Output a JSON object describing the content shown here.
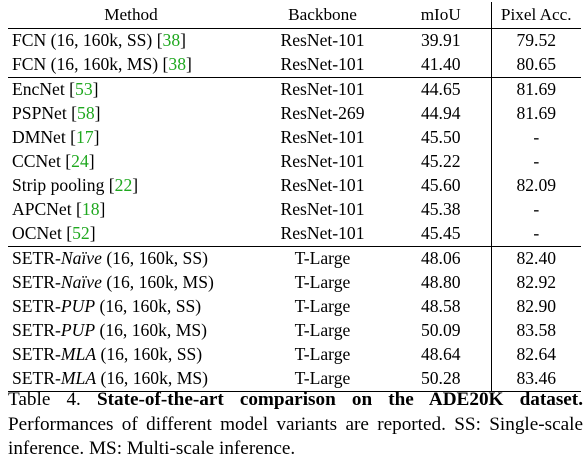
{
  "table": {
    "headers": [
      "Method",
      "Backbone",
      "mIoU",
      "Pixel Acc."
    ],
    "groups": [
      [
        {
          "name": "FCN (16, 160k, SS) ",
          "cite": "38",
          "backbone": "ResNet-101",
          "miou": "39.91",
          "pixacc": "79.52"
        },
        {
          "name": "FCN (16, 160k, MS) ",
          "cite": "38",
          "backbone": "ResNet-101",
          "miou": "41.40",
          "pixacc": "80.65"
        }
      ],
      [
        {
          "name": "EncNet ",
          "cite": "53",
          "backbone": "ResNet-101",
          "miou": "44.65",
          "pixacc": "81.69"
        },
        {
          "name": "PSPNet ",
          "cite": "58",
          "backbone": "ResNet-269",
          "miou": "44.94",
          "pixacc": "81.69"
        },
        {
          "name": "DMNet ",
          "cite": "17",
          "backbone": "ResNet-101",
          "miou": "45.50",
          "pixacc": "-"
        },
        {
          "name": "CCNet ",
          "cite": "24",
          "backbone": "ResNet-101",
          "miou": "45.22",
          "pixacc": "-"
        },
        {
          "name": "Strip pooling ",
          "cite": "22",
          "backbone": "ResNet-101",
          "miou": "45.60",
          "pixacc": "82.09"
        },
        {
          "name": "APCNet ",
          "cite": "18",
          "backbone": "ResNet-101",
          "miou": "45.38",
          "pixacc": "-"
        },
        {
          "name": "OCNet ",
          "cite": "52",
          "backbone": "ResNet-101",
          "miou": "45.45",
          "pixacc": "-"
        }
      ],
      [
        {
          "prefix": "SETR-",
          "variant": "Naïve",
          "suffix": " (16, 160k, SS)",
          "backbone": "T-Large",
          "miou": "48.06",
          "pixacc": "82.40"
        },
        {
          "prefix": "SETR-",
          "variant": "Naïve",
          "suffix": " (16, 160k, MS)",
          "backbone": "T-Large",
          "miou": "48.80",
          "pixacc": "82.92"
        },
        {
          "prefix": "SETR-",
          "variant": "PUP",
          "suffix": " (16, 160k, SS)",
          "backbone": "T-Large",
          "miou": "48.58",
          "pixacc": "82.90"
        },
        {
          "prefix": "SETR-",
          "variant": "PUP",
          "suffix": " (16, 160k, MS)",
          "backbone": "T-Large",
          "miou": "50.09",
          "pixacc": "83.58",
          "bold_pixacc": true
        },
        {
          "prefix": "SETR-",
          "variant": "MLA",
          "suffix": " (16, 160k, SS)",
          "backbone": "T-Large",
          "miou": "48.64",
          "pixacc": "82.64"
        },
        {
          "prefix": "SETR-",
          "variant": "MLA",
          "suffix": " (16, 160k, MS)",
          "backbone": "T-Large",
          "miou": "50.28",
          "pixacc": "83.46",
          "bold_miou": true
        }
      ]
    ]
  },
  "caption": {
    "label": "Table 4. ",
    "title": "State-of-the-art comparison on the ADE20K dataset.",
    "body": " Performances of different model variants are reported. SS: Single-scale inference. MS: Multi-scale inference."
  }
}
